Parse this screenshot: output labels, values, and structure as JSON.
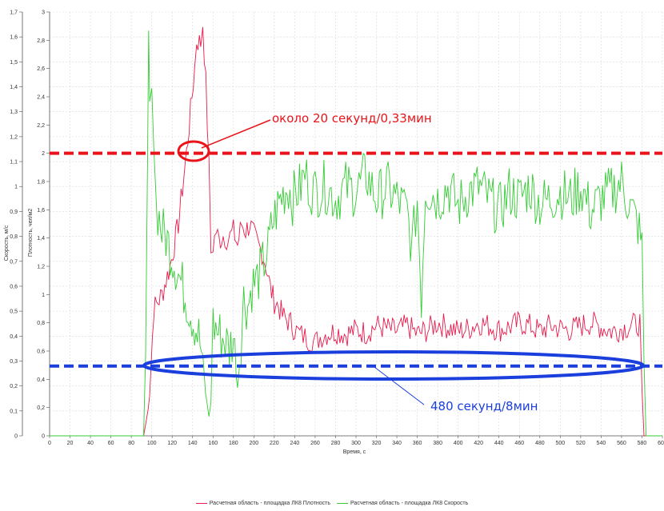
{
  "chart_data": {
    "type": "line",
    "xlabel": "Время, с",
    "ylabel_left": "Скорость, м/с",
    "ylabel_right": "Плотность, чел/м2",
    "xlim": [
      0,
      600
    ],
    "x_ticks": [
      0,
      20,
      40,
      60,
      80,
      100,
      120,
      140,
      160,
      180,
      200,
      220,
      240,
      260,
      280,
      300,
      320,
      340,
      360,
      380,
      400,
      420,
      440,
      460,
      480,
      500,
      520,
      540,
      560,
      580,
      600
    ],
    "y_left_lim": [
      0,
      1.7
    ],
    "y_left_ticks": [
      "0",
      "0,1",
      "0,2",
      "0,3",
      "0,4",
      "0,5",
      "0,6",
      "0,7",
      "0,8",
      "0,9",
      "1",
      "1,1",
      "1,2",
      "1,3",
      "1,4",
      "1,5",
      "1,6",
      "1,7"
    ],
    "y_right_lim": [
      0,
      3
    ],
    "y_right_ticks": [
      "0",
      "0,2",
      "0,4",
      "0,6",
      "0,8",
      "1",
      "1,2",
      "1,4",
      "1,6",
      "1,8",
      "2",
      "2,2",
      "2,4",
      "2,6",
      "2,8",
      "3"
    ],
    "grid": true,
    "series": [
      {
        "name": "Расчетная область - площадка ЛК8 Плотность",
        "axis": "right",
        "color": "#e8194b",
        "points": [
          [
            0,
            0
          ],
          [
            92,
            0
          ],
          [
            95,
            0.12
          ],
          [
            98,
            0.3
          ],
          [
            102,
            0.9
          ],
          [
            106,
            0.95
          ],
          [
            110,
            1.0
          ],
          [
            114,
            1.1
          ],
          [
            118,
            1.2
          ],
          [
            122,
            1.35
          ],
          [
            126,
            1.5
          ],
          [
            130,
            1.75
          ],
          [
            134,
            2.0
          ],
          [
            138,
            2.3
          ],
          [
            142,
            2.6
          ],
          [
            144,
            2.8
          ],
          [
            148,
            2.78
          ],
          [
            150,
            2.92
          ],
          [
            153,
            2.5
          ],
          [
            156,
            1.9
          ],
          [
            158,
            1.3
          ],
          [
            160,
            1.35
          ],
          [
            163,
            1.45
          ],
          [
            166,
            1.38
          ],
          [
            170,
            1.42
          ],
          [
            175,
            1.39
          ],
          [
            180,
            1.45
          ],
          [
            184,
            1.35
          ],
          [
            188,
            1.5
          ],
          [
            192,
            1.45
          ],
          [
            196,
            1.5
          ],
          [
            200,
            1.42
          ],
          [
            204,
            1.35
          ],
          [
            208,
            1.3
          ],
          [
            212,
            1.2
          ],
          [
            216,
            1.05
          ],
          [
            220,
            0.95
          ],
          [
            224,
            0.92
          ],
          [
            228,
            0.85
          ],
          [
            232,
            0.82
          ],
          [
            236,
            0.8
          ],
          [
            240,
            0.75
          ],
          [
            245,
            0.72
          ],
          [
            250,
            0.7
          ],
          [
            255,
            0.68
          ],
          [
            260,
            0.66
          ],
          [
            265,
            0.7
          ],
          [
            270,
            0.72
          ],
          [
            280,
            0.74
          ],
          [
            290,
            0.72
          ],
          [
            300,
            0.75
          ],
          [
            310,
            0.73
          ],
          [
            320,
            0.78
          ],
          [
            330,
            0.76
          ],
          [
            340,
            0.74
          ],
          [
            350,
            0.78
          ],
          [
            360,
            0.72
          ],
          [
            370,
            0.75
          ],
          [
            380,
            0.8
          ],
          [
            390,
            0.77
          ],
          [
            400,
            0.74
          ],
          [
            410,
            0.76
          ],
          [
            420,
            0.8
          ],
          [
            430,
            0.78
          ],
          [
            440,
            0.75
          ],
          [
            450,
            0.77
          ],
          [
            460,
            0.8
          ],
          [
            470,
            0.78
          ],
          [
            480,
            0.74
          ],
          [
            490,
            0.78
          ],
          [
            500,
            0.76
          ],
          [
            510,
            0.75
          ],
          [
            520,
            0.78
          ],
          [
            530,
            0.8
          ],
          [
            540,
            0.77
          ],
          [
            550,
            0.74
          ],
          [
            560,
            0.76
          ],
          [
            570,
            0.78
          ],
          [
            578,
            0.8
          ],
          [
            580,
            0.3
          ],
          [
            582,
            0
          ],
          [
            600,
            0
          ]
        ]
      },
      {
        "name": "Расчетная область - площадка ЛК8 Скорость",
        "axis": "left",
        "color": "#33cc33",
        "points": [
          [
            0,
            0
          ],
          [
            92,
            0
          ],
          [
            94,
            0.3
          ],
          [
            96,
            1.1
          ],
          [
            97,
            1.61
          ],
          [
            98,
            1.25
          ],
          [
            100,
            1.5
          ],
          [
            102,
            1.2
          ],
          [
            104,
            0.95
          ],
          [
            106,
            0.9
          ],
          [
            110,
            0.82
          ],
          [
            114,
            0.8
          ],
          [
            118,
            0.75
          ],
          [
            122,
            0.7
          ],
          [
            126,
            0.65
          ],
          [
            130,
            0.6
          ],
          [
            134,
            0.55
          ],
          [
            138,
            0.5
          ],
          [
            142,
            0.45
          ],
          [
            146,
            0.4
          ],
          [
            150,
            0.3
          ],
          [
            154,
            0.12
          ],
          [
            156,
            0.08
          ],
          [
            158,
            0.15
          ],
          [
            160,
            0.45
          ],
          [
            164,
            0.42
          ],
          [
            168,
            0.4
          ],
          [
            172,
            0.38
          ],
          [
            176,
            0.35
          ],
          [
            180,
            0.4
          ],
          [
            184,
            0.2
          ],
          [
            186,
            0.3
          ],
          [
            190,
            0.55
          ],
          [
            194,
            0.52
          ],
          [
            198,
            0.6
          ],
          [
            202,
            0.62
          ],
          [
            206,
            0.65
          ],
          [
            210,
            0.7
          ],
          [
            214,
            0.75
          ],
          [
            218,
            0.85
          ],
          [
            222,
            0.9
          ],
          [
            226,
            0.95
          ],
          [
            230,
            0.98
          ],
          [
            234,
            1.0
          ],
          [
            238,
            0.95
          ],
          [
            242,
            0.98
          ],
          [
            246,
            1.0
          ],
          [
            250,
            1.05
          ],
          [
            255,
            1.0
          ],
          [
            260,
            0.98
          ],
          [
            270,
            1.0
          ],
          [
            280,
            0.95
          ],
          [
            290,
            1.0
          ],
          [
            300,
            0.98
          ],
          [
            310,
            1.05
          ],
          [
            320,
            0.95
          ],
          [
            330,
            1.0
          ],
          [
            340,
            0.95
          ],
          [
            350,
            0.9
          ],
          [
            355,
            0.75
          ],
          [
            360,
            0.95
          ],
          [
            364,
            0.55
          ],
          [
            368,
            1.0
          ],
          [
            380,
            0.95
          ],
          [
            390,
            1.0
          ],
          [
            400,
            0.92
          ],
          [
            410,
            0.98
          ],
          [
            420,
            1.0
          ],
          [
            430,
            0.95
          ],
          [
            440,
            0.9
          ],
          [
            450,
            0.98
          ],
          [
            460,
            0.95
          ],
          [
            470,
            1.0
          ],
          [
            480,
            0.93
          ],
          [
            490,
            0.95
          ],
          [
            500,
            0.98
          ],
          [
            510,
            0.95
          ],
          [
            520,
            1.0
          ],
          [
            530,
            0.9
          ],
          [
            540,
            0.95
          ],
          [
            550,
            0.98
          ],
          [
            560,
            1.02
          ],
          [
            570,
            0.9
          ],
          [
            576,
            0.85
          ],
          [
            580,
            0.75
          ],
          [
            582,
            0.3
          ],
          [
            584,
            0
          ],
          [
            600,
            0
          ]
        ]
      }
    ],
    "reference_lines": [
      {
        "name": "red-threshold",
        "axis": "right",
        "value": 2.0,
        "color": "#e8141a"
      },
      {
        "name": "blue-threshold",
        "axis": "left",
        "value": 0.28,
        "color": "#1a3fdc"
      }
    ],
    "annotations": [
      {
        "text": "около 20 секунд/0,33мин",
        "color": "#e8141a"
      },
      {
        "text": "480 секунд/8мин",
        "color": "#1a3fdc"
      }
    ],
    "legend_position": "bottom"
  }
}
